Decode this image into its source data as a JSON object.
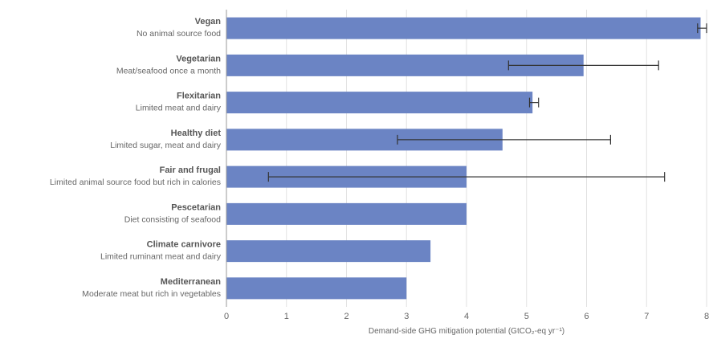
{
  "chart_data": {
    "type": "bar",
    "orientation": "horizontal",
    "categories": [
      {
        "name": "Vegan",
        "description": "No animal source food"
      },
      {
        "name": "Vegetarian",
        "description": "Meat/seafood once a month"
      },
      {
        "name": "Flexitarian",
        "description": "Limited meat and dairy"
      },
      {
        "name": "Healthy diet",
        "description": "Limited sugar, meat and dairy"
      },
      {
        "name": "Fair and frugal",
        "description": "Limited animal source food but rich in calories"
      },
      {
        "name": "Pescetarian",
        "description": "Diet consisting of seafood"
      },
      {
        "name": "Climate carnivore",
        "description": "Limited ruminant meat and dairy"
      },
      {
        "name": "Mediterranean",
        "description": "Moderate meat but rich in vegetables"
      }
    ],
    "values": [
      7.9,
      5.95,
      5.1,
      4.6,
      4.0,
      4.0,
      3.4,
      3.0
    ],
    "error_low": [
      7.85,
      4.7,
      5.05,
      2.85,
      0.7,
      null,
      null,
      null
    ],
    "error_high": [
      8.0,
      7.2,
      5.2,
      6.4,
      7.3,
      null,
      null,
      null
    ],
    "xlabel": "Demand-side GHG mitigation potential (GtCO₂-eq yr⁻¹)",
    "ylabel": "",
    "xlim": [
      0,
      8
    ],
    "xticks": [
      "0",
      "1",
      "2",
      "3",
      "4",
      "5",
      "6",
      "7",
      "8"
    ],
    "grid": true,
    "bar_color": "#6b84c4",
    "errorbar_color": "#333333",
    "grid_color": "#e2e2e2"
  }
}
